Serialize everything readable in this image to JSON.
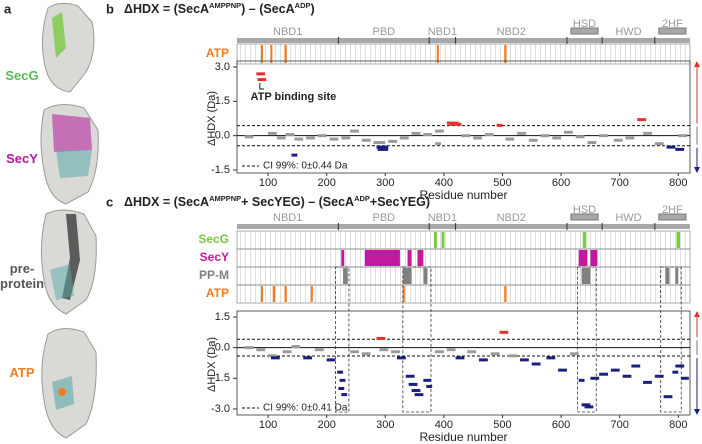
{
  "panel_a": {
    "letter": "a",
    "labels": [
      {
        "text": "SecG",
        "color": "#5cb85c"
      },
      {
        "text": "SecY",
        "color": "#b5179e"
      },
      {
        "text": "pre-protein",
        "color": "#555555"
      },
      {
        "text": "ATP",
        "color": "#f47c20"
      }
    ]
  },
  "chart_data": [
    {
      "type": "hdx",
      "letter": "b",
      "title": [
        {
          "text": "ΔHDX = (SecA"
        },
        {
          "text": "AMPPNP",
          "sup": true
        },
        {
          "text": ") – (SecA"
        },
        {
          "text": "ADP",
          "sup": true
        },
        {
          "text": ")"
        }
      ],
      "domains": [
        {
          "label": "NBD1",
          "start": 47,
          "end": 220
        },
        {
          "label": "PBD",
          "start": 220,
          "end": 375
        },
        {
          "label": "NBD1",
          "start": 375,
          "end": 420
        },
        {
          "label": "NBD2",
          "start": 420,
          "end": 610
        },
        {
          "label": "HSD",
          "start": 610,
          "end": 670,
          "boxed": true
        },
        {
          "label": "HWD",
          "start": 670,
          "end": 760
        },
        {
          "label": "2HF",
          "start": 760,
          "end": 820,
          "boxed": true
        }
      ],
      "tracks": [
        {
          "name": "ATP",
          "color": "#f47c20",
          "ranges": [
            [
              88,
              91
            ],
            [
              104,
              107
            ],
            [
              128,
              132
            ],
            [
              388,
              391
            ],
            [
              503,
              507
            ]
          ]
        }
      ],
      "peptides": {
        "start": [
          80,
          82,
          60,
          100,
          115,
          130,
          145,
          165,
          185,
          205,
          225,
          240,
          260,
          280,
          285,
          287,
          305,
          325,
          345,
          365,
          385,
          385,
          405,
          410,
          430,
          450,
          470,
          490,
          505,
          525,
          545,
          565,
          585,
          605,
          625,
          645,
          665,
          690,
          710,
          730,
          740,
          760,
          780,
          795,
          800,
          140
        ],
        "end": [
          95,
          97,
          75,
          115,
          130,
          145,
          160,
          180,
          200,
          220,
          240,
          255,
          275,
          300,
          305,
          305,
          320,
          340,
          360,
          380,
          400,
          395,
          425,
          430,
          445,
          465,
          485,
          500,
          520,
          540,
          560,
          580,
          600,
          620,
          640,
          660,
          680,
          705,
          725,
          745,
          755,
          775,
          795,
          810,
          815,
          150
        ],
        "values": [
          2.7,
          2.45,
          -0.05,
          0.1,
          -0.1,
          0.05,
          -0.15,
          -0.1,
          0.0,
          -0.15,
          -0.1,
          0.2,
          -0.2,
          -0.3,
          -0.5,
          -0.6,
          -0.25,
          -0.1,
          0.1,
          0.05,
          0.2,
          -0.35,
          0.55,
          0.5,
          0.0,
          -0.1,
          0.05,
          0.45,
          -0.15,
          0.1,
          -0.2,
          0.0,
          -0.1,
          0.15,
          -0.05,
          -0.3,
          0.0,
          -0.2,
          -0.1,
          0.7,
          0.1,
          -0.35,
          -0.5,
          -0.6,
          0.0,
          -0.85
        ]
      },
      "colors": {
        "increase": "#e8302f",
        "decrease": "#1c1f7e",
        "neutral": "#9a9a9a"
      },
      "ci": 0.44,
      "ci_label": "CI 99%: 0±0.44 Da",
      "annotation": "ATP binding site",
      "xlim": [
        47,
        820
      ],
      "xticks": [
        100,
        200,
        300,
        400,
        500,
        600,
        700,
        800
      ],
      "ylim": [
        -1.5,
        3.0
      ],
      "yticks": [
        -1.5,
        {
          "value": 0,
          "label": "0.0"
        },
        1.5,
        {
          "value": 3,
          "label": "3.0"
        }
      ],
      "xlabel": "Residue number",
      "ylabel": "ΔHDX (Da)"
    },
    {
      "type": "hdx",
      "letter": "c",
      "title": [
        {
          "text": "ΔHDX = (SecA"
        },
        {
          "text": "AMPPNP",
          "sup": true
        },
        {
          "text": "+ SecYEG) – (SecA"
        },
        {
          "text": "ADP",
          "sup": true
        },
        {
          "text": "+SecYEG)"
        }
      ],
      "domains": [
        {
          "label": "NBD1",
          "start": 47,
          "end": 220
        },
        {
          "label": "PBD",
          "start": 220,
          "end": 375
        },
        {
          "label": "NBD1",
          "start": 375,
          "end": 420
        },
        {
          "label": "NBD2",
          "start": 420,
          "end": 610
        },
        {
          "label": "HSD",
          "start": 610,
          "end": 670,
          "boxed": true
        },
        {
          "label": "HWD",
          "start": 670,
          "end": 760
        },
        {
          "label": "2HF",
          "start": 760,
          "end": 820,
          "boxed": true
        }
      ],
      "tracks": [
        {
          "name": "SecG",
          "color": "#7ac943",
          "ranges": [
            [
              383,
              388
            ],
            [
              396,
              401
            ],
            [
              637,
              643
            ],
            [
              797,
              803
            ]
          ]
        },
        {
          "name": "SecY",
          "color": "#c4189e",
          "ranges": [
            [
              225,
              230
            ],
            [
              265,
              325
            ],
            [
              338,
              345
            ],
            [
              355,
              365
            ],
            [
              630,
              645
            ],
            [
              650,
              662
            ]
          ]
        },
        {
          "name": "PP-M",
          "color": "#808080",
          "ranges": [
            [
              228,
              236
            ],
            [
              330,
              345
            ],
            [
              365,
              372
            ],
            [
              635,
              650
            ],
            [
              778,
              785
            ],
            [
              795,
              800
            ]
          ]
        },
        {
          "name": "ATP",
          "color": "#f47c20",
          "ranges": [
            [
              88,
              91
            ],
            [
              108,
              112
            ],
            [
              128,
              132
            ],
            [
              173,
              176
            ],
            [
              330,
              333
            ],
            [
              503,
              507
            ]
          ]
        }
      ],
      "highlights": [
        [
          215,
          238
        ],
        [
          330,
          378
        ],
        [
          628,
          660
        ],
        [
          770,
          805
        ]
      ],
      "peptides": {
        "start": [
          60,
          80,
          100,
          105,
          125,
          140,
          160,
          180,
          200,
          218,
          222,
          220,
          225,
          240,
          260,
          285,
          290,
          310,
          320,
          335,
          340,
          345,
          350,
          365,
          370,
          385,
          405,
          420,
          440,
          460,
          480,
          495,
          510,
          530,
          550,
          575,
          595,
          615,
          630,
          635,
          640,
          650,
          665,
          685,
          705,
          720,
          740,
          760,
          775,
          790,
          795,
          805
        ],
        "end": [
          75,
          95,
          115,
          120,
          140,
          155,
          175,
          195,
          215,
          228,
          232,
          230,
          235,
          255,
          275,
          300,
          305,
          325,
          335,
          350,
          355,
          360,
          365,
          378,
          380,
          400,
          420,
          435,
          455,
          475,
          495,
          510,
          525,
          545,
          565,
          590,
          610,
          630,
          640,
          650,
          655,
          665,
          680,
          700,
          720,
          735,
          755,
          775,
          790,
          800,
          810,
          818
        ],
        "values": [
          0.0,
          -0.1,
          -0.4,
          -0.5,
          -0.2,
          0.05,
          -0.5,
          -0.1,
          -0.6,
          -1.2,
          -1.6,
          -2.0,
          -2.3,
          -0.2,
          -0.3,
          0.45,
          -0.1,
          -0.2,
          -0.5,
          -1.4,
          -1.8,
          -2.1,
          -2.3,
          -1.6,
          -1.9,
          -0.2,
          -0.1,
          -0.5,
          -0.2,
          -0.6,
          -0.3,
          0.75,
          -0.4,
          -0.6,
          -0.8,
          -0.5,
          -1.1,
          -0.3,
          -1.6,
          -2.8,
          -2.9,
          -1.5,
          -1.3,
          -1.1,
          -1.4,
          -0.9,
          -1.7,
          -1.4,
          -2.4,
          -1.2,
          -0.9,
          -1.5
        ]
      },
      "colors": {
        "increase": "#e8302f",
        "decrease": "#1c1f7e",
        "neutral": "#9a9a9a"
      },
      "ci": 0.41,
      "ci_label": "CI 99%: 0±0.41 Da",
      "xlim": [
        47,
        820
      ],
      "xticks": [
        100,
        200,
        300,
        400,
        500,
        600,
        700,
        800
      ],
      "ylim": [
        -3.15,
        1.5
      ],
      "yticks": [
        {
          "value": -3,
          "label": "-3.0"
        },
        -1.5,
        {
          "value": 0,
          "label": "0.0"
        },
        1.5
      ],
      "xlabel": "Residue number",
      "ylabel": "ΔHDX (Da)"
    }
  ]
}
